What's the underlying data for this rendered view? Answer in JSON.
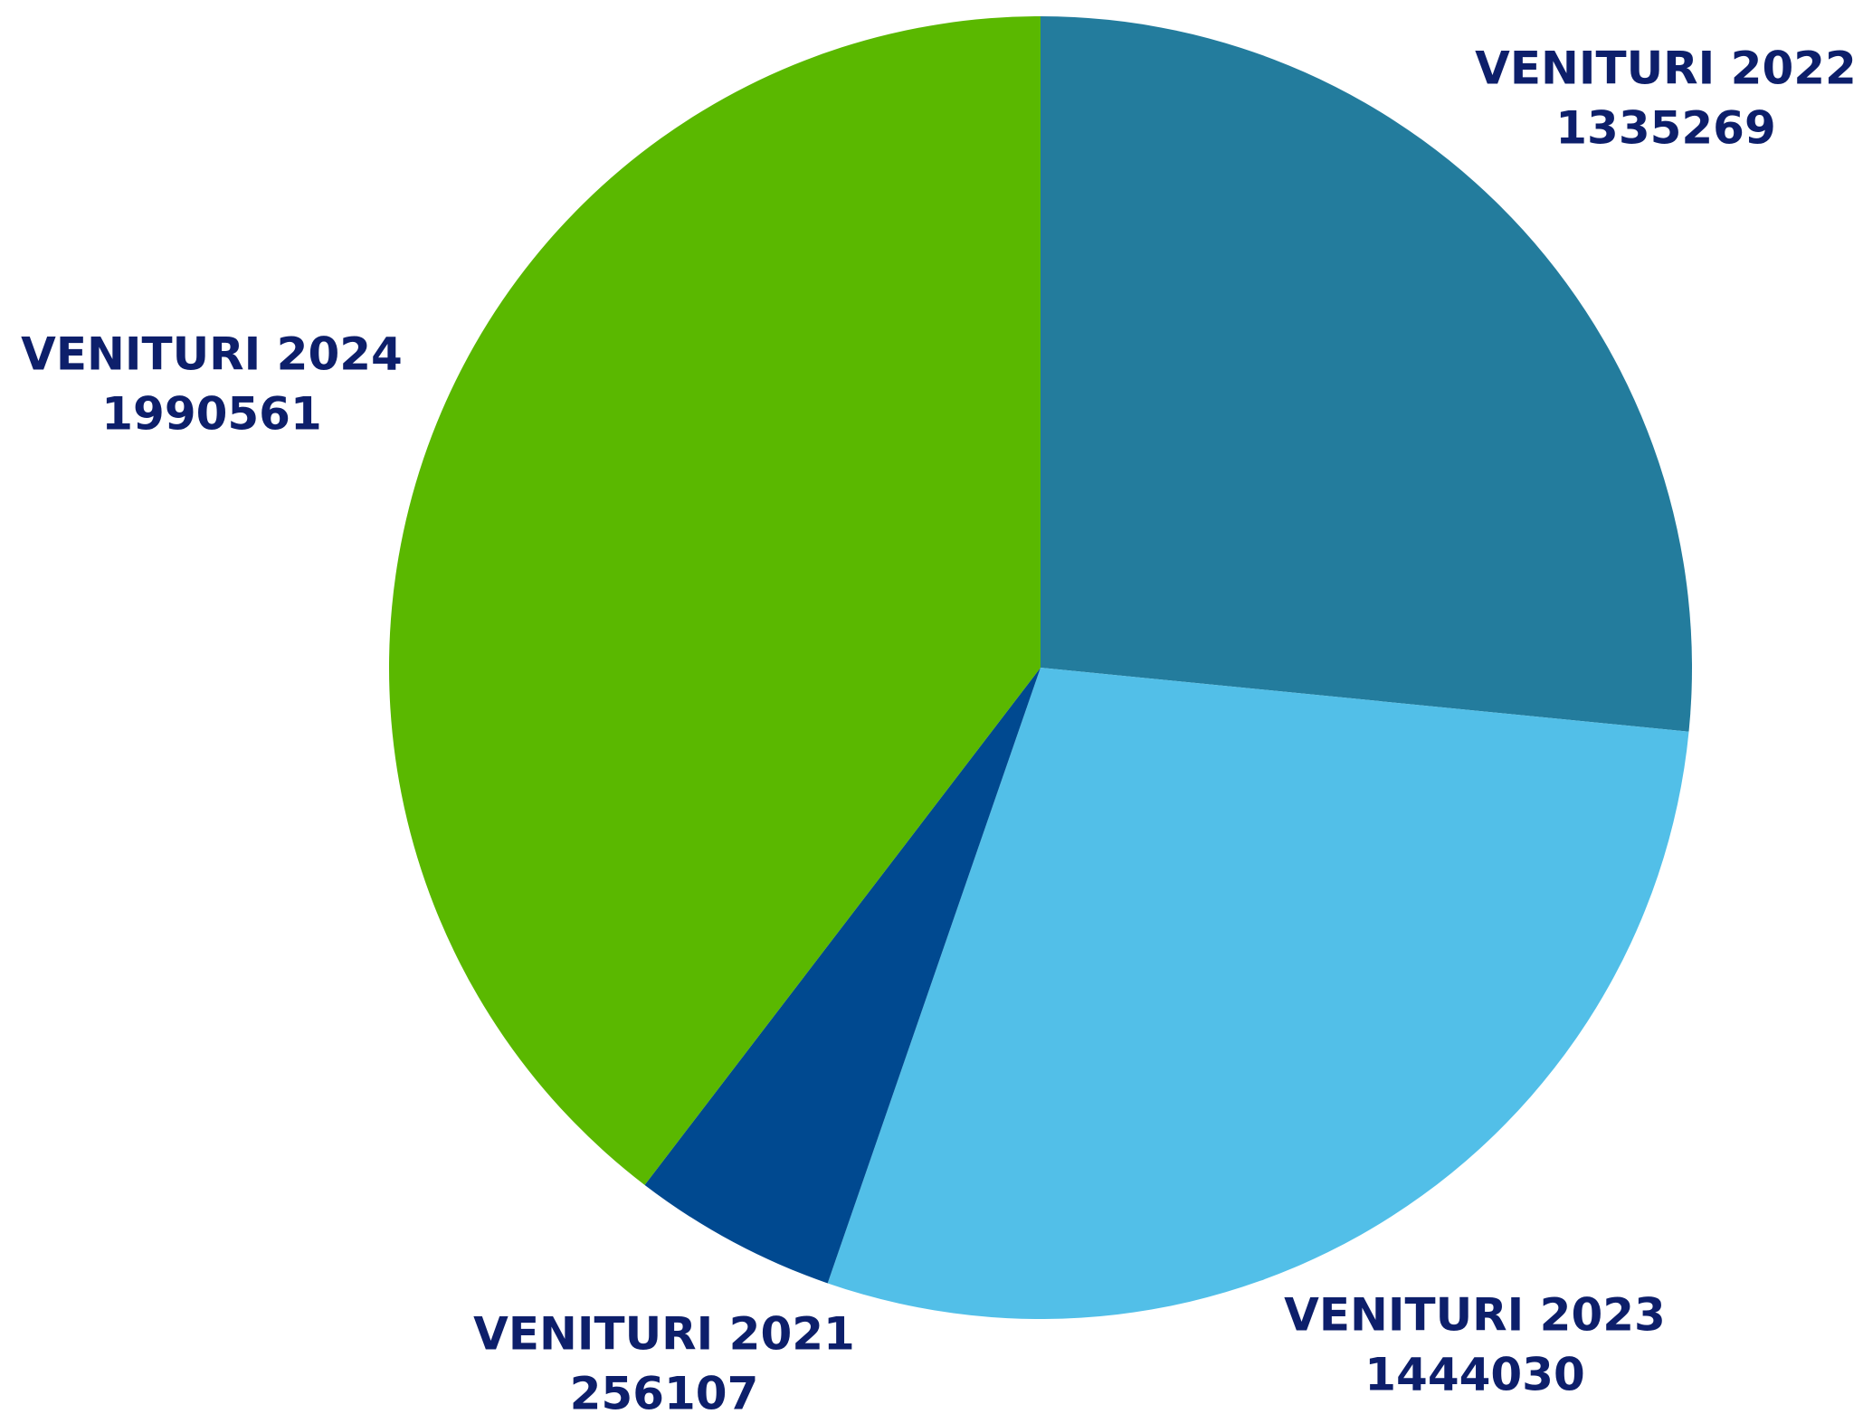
{
  "chart_data": {
    "type": "pie",
    "categories": [
      "VENITURI 2022",
      "VENITURI 2023",
      "VENITURI 2021",
      "VENITURI 2024"
    ],
    "values": [
      1335269,
      1444030,
      256107,
      1990561
    ],
    "colors": [
      "#237c9d",
      "#52bfe8",
      "#004990",
      "#5ab800"
    ]
  }
}
